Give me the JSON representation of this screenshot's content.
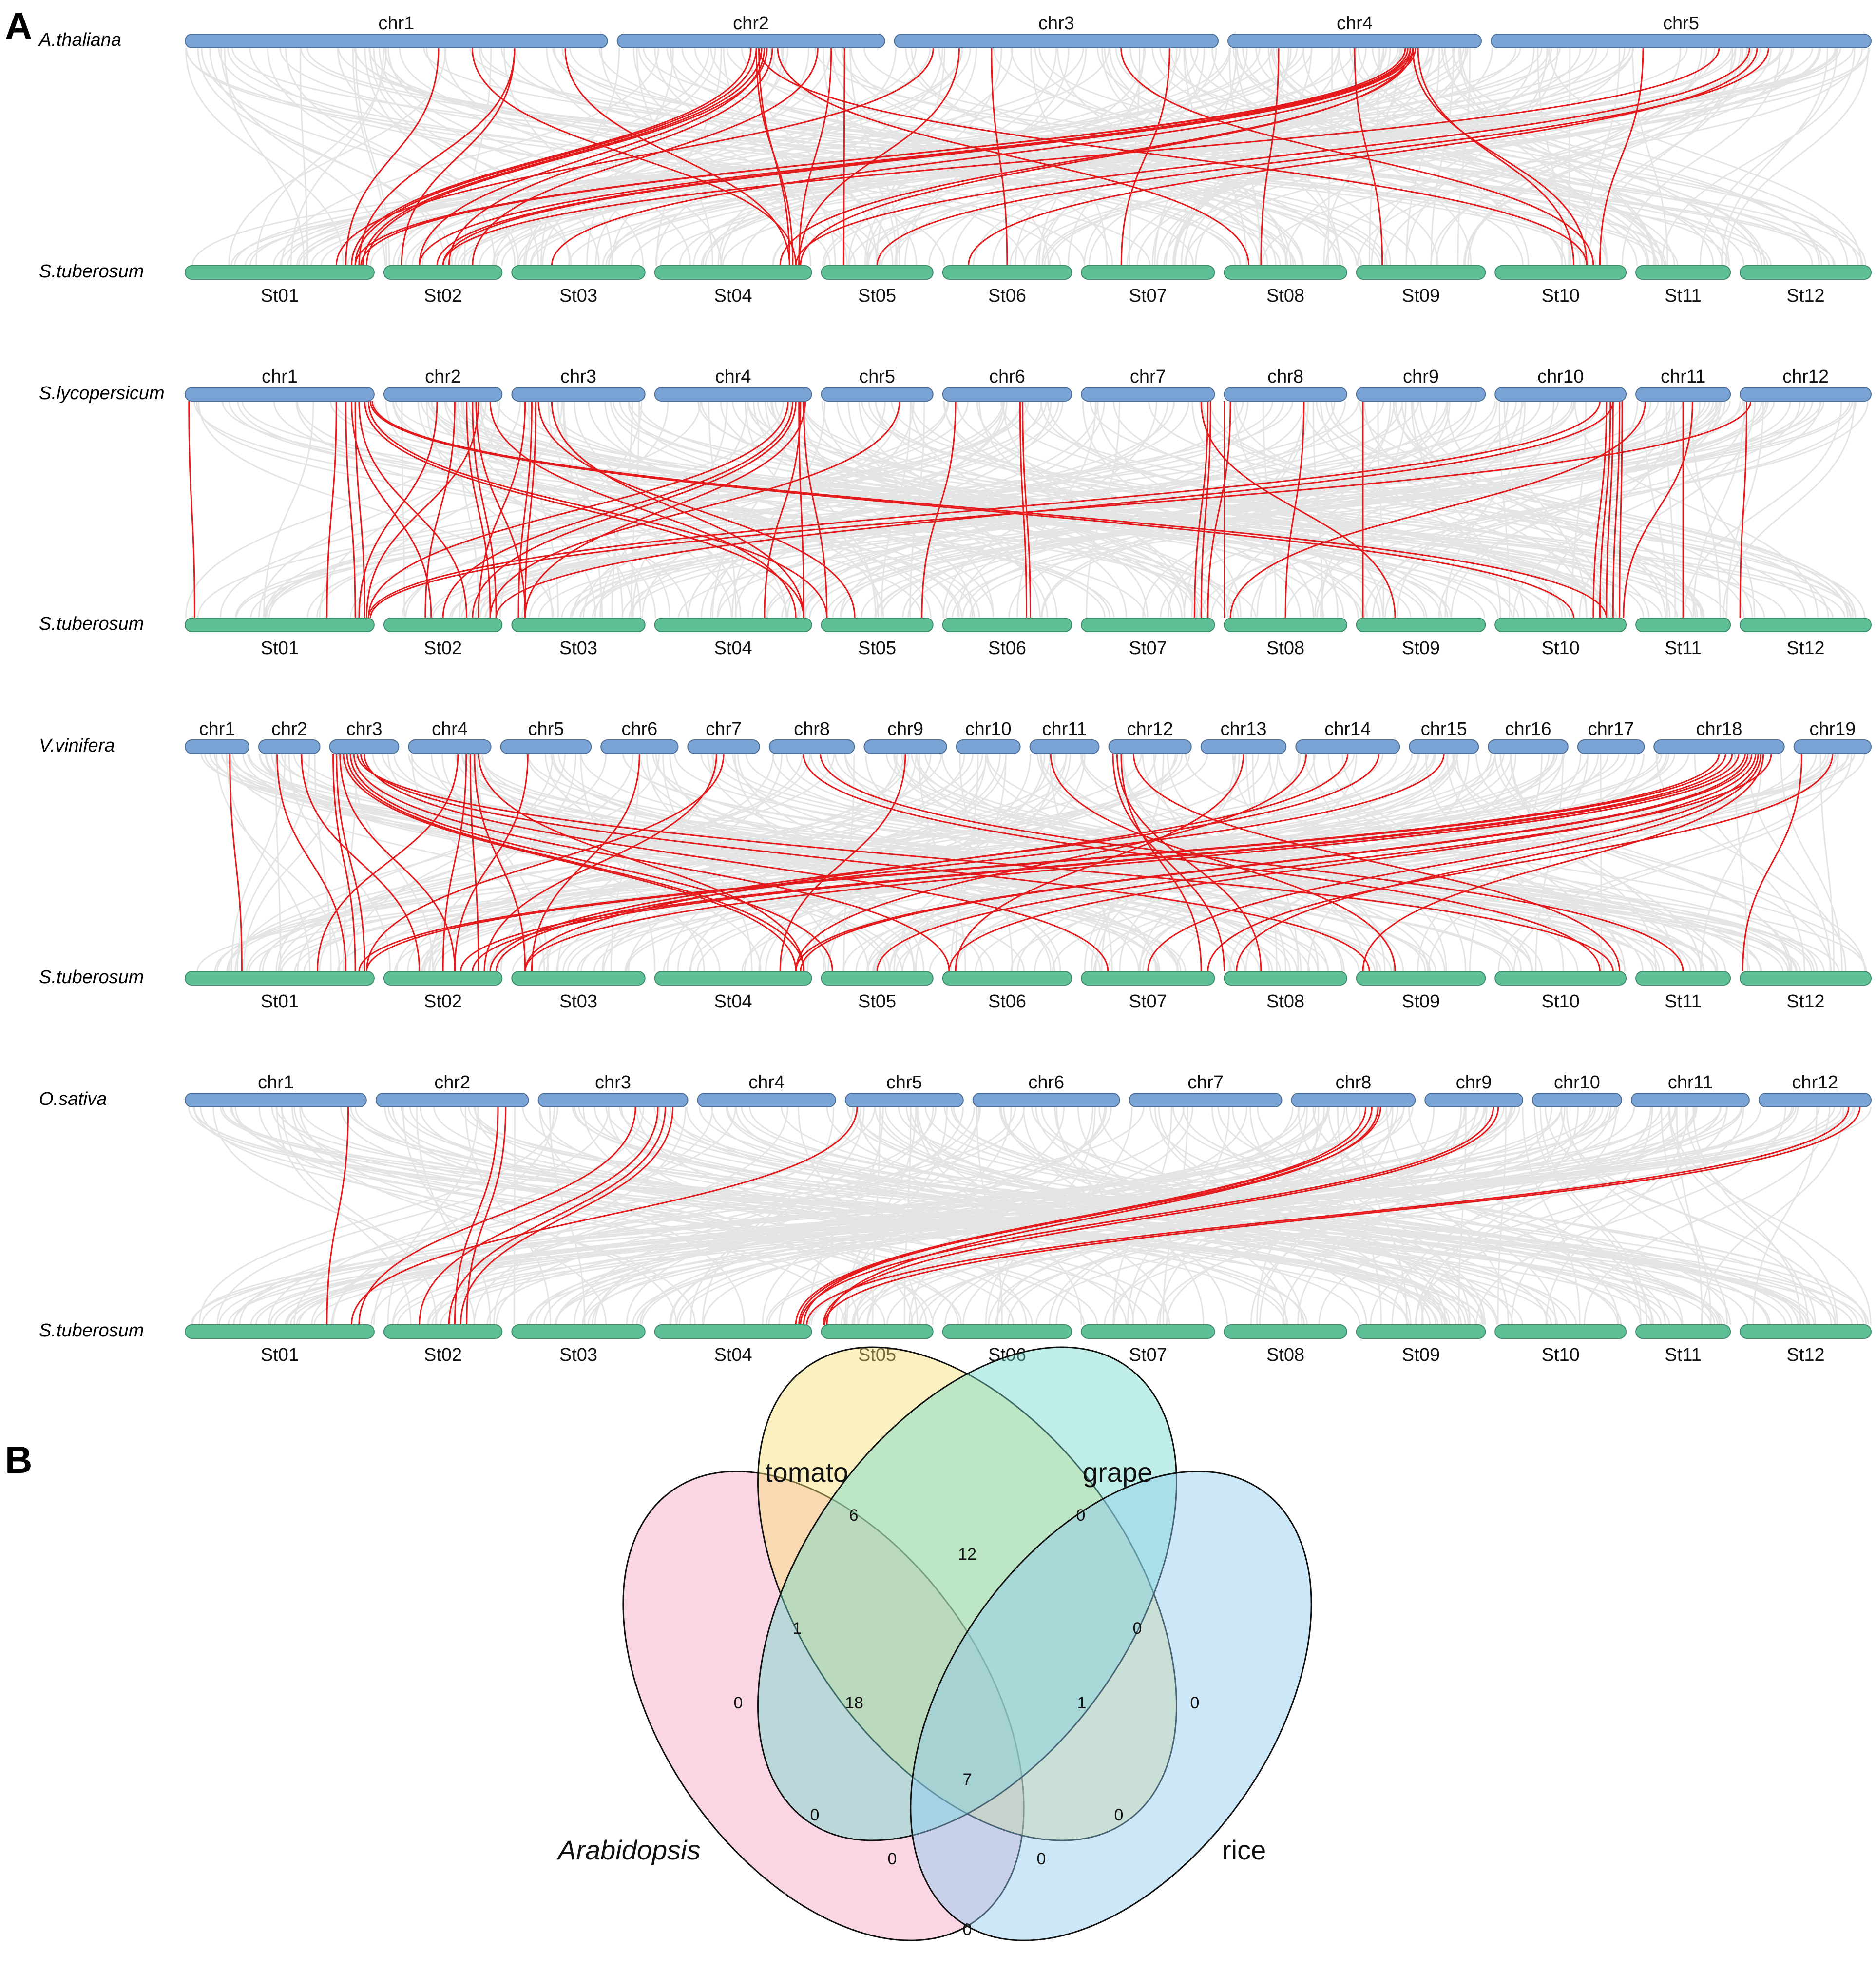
{
  "panel_a": {
    "letter": "A",
    "colors": {
      "top_bar": "#7aa3d6",
      "bottom_bar": "#5fbf97",
      "background_link": "#e4e4e4",
      "highlight_link": "#e41a1c"
    },
    "target": {
      "species": "S.tuberosum",
      "chromosomes": [
        "St01",
        "St02",
        "St03",
        "St04",
        "St05",
        "St06",
        "St07",
        "St08",
        "St09",
        "St10",
        "St11",
        "St12"
      ],
      "relative_lengths": [
        88,
        55,
        62,
        73,
        52,
        60,
        62,
        57,
        60,
        61,
        44,
        61
      ]
    },
    "rows": [
      {
        "species": "A.thaliana",
        "chromosomes": [
          "chr1",
          "chr2",
          "chr3",
          "chr4",
          "chr5"
        ],
        "relative_lengths": [
          30,
          19,
          23,
          18,
          27
        ],
        "highlight_links": [
          [
            0,
            0.78,
            0,
            0.92
          ],
          [
            0,
            0.78,
            1,
            0.15
          ],
          [
            0,
            0.9,
            3,
            0.86
          ],
          [
            0,
            0.6,
            0,
            0.85
          ],
          [
            0,
            0.68,
            3,
            0.9
          ],
          [
            1,
            0.5,
            0,
            0.88
          ],
          [
            1,
            0.52,
            0,
            0.9
          ],
          [
            1,
            0.54,
            0,
            0.94
          ],
          [
            1,
            0.56,
            0,
            0.96
          ],
          [
            1,
            0.55,
            1,
            0.3
          ],
          [
            1,
            0.58,
            1,
            0.55
          ],
          [
            1,
            0.52,
            3,
            0.88
          ],
          [
            1,
            0.53,
            3,
            0.86
          ],
          [
            1,
            0.75,
            1,
            0.75
          ],
          [
            1,
            0.8,
            3,
            0.92
          ],
          [
            1,
            0.85,
            4,
            0.2
          ],
          [
            1,
            0.6,
            7,
            0.2
          ],
          [
            1,
            0.53,
            9,
            0.7
          ],
          [
            2,
            0.12,
            0,
            0.8
          ],
          [
            2,
            0.2,
            3,
            0.92
          ],
          [
            2,
            0.3,
            5,
            0.5
          ],
          [
            2,
            0.7,
            9,
            0.75
          ],
          [
            2,
            0.85,
            6,
            0.3
          ],
          [
            3,
            0.72,
            0,
            0.9
          ],
          [
            3,
            0.7,
            0,
            0.93
          ],
          [
            3,
            0.71,
            1,
            0.3
          ],
          [
            3,
            0.72,
            1,
            0.45
          ],
          [
            3,
            0.73,
            1,
            0.5
          ],
          [
            3,
            0.72,
            3,
            0.93
          ],
          [
            3,
            0.73,
            3,
            0.8
          ],
          [
            3,
            0.75,
            9,
            0.6
          ],
          [
            3,
            0.73,
            9,
            0.7
          ],
          [
            3,
            0.2,
            7,
            0.3
          ],
          [
            3,
            0.5,
            8,
            0.2
          ],
          [
            3,
            0.74,
            2,
            0.3
          ],
          [
            4,
            0.73,
            4,
            0.5
          ],
          [
            4,
            0.6,
            1,
            0.5
          ],
          [
            4,
            0.68,
            3,
            0.9
          ],
          [
            4,
            0.7,
            5,
            0.2
          ],
          [
            4,
            0.4,
            9,
            0.8
          ]
        ]
      },
      {
        "species": "S.lycopersicum",
        "chromosomes": [
          "chr1",
          "chr2",
          "chr3",
          "chr4",
          "chr5",
          "chr6",
          "chr7",
          "chr8",
          "chr9",
          "chr10",
          "chr11",
          "chr12"
        ],
        "relative_lengths": [
          88,
          55,
          62,
          73,
          52,
          60,
          62,
          57,
          60,
          61,
          44,
          61
        ],
        "highlight_links": [
          [
            0,
            0.02,
            0,
            0.05
          ],
          [
            0,
            0.8,
            0,
            0.75
          ],
          [
            0,
            0.85,
            0,
            0.9
          ],
          [
            0,
            0.9,
            0,
            0.95
          ],
          [
            0,
            0.88,
            1,
            0.4
          ],
          [
            0,
            0.92,
            1,
            0.7
          ],
          [
            0,
            0.95,
            3,
            0.95
          ],
          [
            0,
            0.97,
            4,
            0.05
          ],
          [
            0,
            0.98,
            9,
            0.6
          ],
          [
            0,
            0.99,
            9,
            0.85
          ],
          [
            1,
            0.45,
            0,
            0.92
          ],
          [
            1,
            0.6,
            1,
            0.35
          ],
          [
            1,
            0.7,
            1,
            0.9
          ],
          [
            1,
            0.75,
            1,
            0.95
          ],
          [
            1,
            0.8,
            0,
            0.96
          ],
          [
            1,
            0.78,
            2,
            0.1
          ],
          [
            1,
            0.9,
            3,
            0.9
          ],
          [
            2,
            0.1,
            1,
            0.8
          ],
          [
            2,
            0.15,
            2,
            0.05
          ],
          [
            2,
            0.18,
            2,
            0.1
          ],
          [
            2,
            0.3,
            3,
            0.95
          ],
          [
            2,
            0.2,
            4,
            0.3
          ],
          [
            3,
            0.85,
            0,
            0.97
          ],
          [
            3,
            0.88,
            1,
            0.5
          ],
          [
            3,
            0.9,
            1,
            0.75
          ],
          [
            3,
            0.92,
            3,
            0.95
          ],
          [
            3,
            0.95,
            4,
            0.05
          ],
          [
            3,
            0.93,
            3,
            0.7
          ],
          [
            3,
            0.96,
            2,
            0.1
          ],
          [
            4,
            0.7,
            1,
            0.9
          ],
          [
            5,
            0.6,
            5,
            0.65
          ],
          [
            5,
            0.62,
            5,
            0.68
          ],
          [
            5,
            0.1,
            4,
            0.9
          ],
          [
            6,
            0.95,
            6,
            0.85
          ],
          [
            6,
            0.97,
            6,
            0.9
          ],
          [
            6,
            0.9,
            8,
            0.3
          ],
          [
            7,
            0.0,
            7,
            0.0
          ],
          [
            7,
            0.65,
            7,
            0.5
          ],
          [
            7,
            0.05,
            6,
            0.95
          ],
          [
            8,
            0.05,
            8,
            0.05
          ],
          [
            9,
            0.85,
            9,
            0.75
          ],
          [
            9,
            0.88,
            9,
            0.8
          ],
          [
            9,
            0.9,
            9,
            0.85
          ],
          [
            9,
            0.95,
            9,
            0.9
          ],
          [
            9,
            0.97,
            9,
            0.95
          ],
          [
            9,
            0.8,
            0,
            0.97
          ],
          [
            9,
            0.9,
            1,
            0.95
          ],
          [
            10,
            0.5,
            10,
            0.5
          ],
          [
            10,
            0.6,
            9,
            0.98
          ],
          [
            11,
            0.05,
            11,
            0.0
          ],
          [
            11,
            0.08,
            0,
            0.98
          ],
          [
            10,
            0.1,
            7,
            0.05
          ]
        ]
      },
      {
        "species": "V.vinifera",
        "chromosomes": [
          "chr1",
          "chr2",
          "chr3",
          "chr4",
          "chr5",
          "chr6",
          "chr7",
          "chr8",
          "chr9",
          "chr10",
          "chr11",
          "chr12",
          "chr13",
          "chr14",
          "chr15",
          "chr16",
          "chr17",
          "chr18",
          "chr19"
        ],
        "relative_lengths": [
          24,
          23,
          26,
          31,
          34,
          29,
          27,
          32,
          31,
          24,
          26,
          31,
          32,
          39,
          26,
          30,
          25,
          49,
          29
        ],
        "highlight_links": [
          [
            0,
            0.7,
            0,
            0.3
          ],
          [
            1,
            0.3,
            0,
            0.85
          ],
          [
            1,
            0.7,
            1,
            0.3
          ],
          [
            2,
            0.05,
            0,
            0.9
          ],
          [
            2,
            0.1,
            0,
            0.95
          ],
          [
            2,
            0.15,
            1,
            0.6
          ],
          [
            2,
            0.2,
            3,
            0.9
          ],
          [
            2,
            0.25,
            3,
            0.95
          ],
          [
            2,
            0.3,
            4,
            0.1
          ],
          [
            2,
            0.35,
            5,
            0.05
          ],
          [
            2,
            0.4,
            9,
            0.9
          ],
          [
            2,
            0.45,
            8,
            0.1
          ],
          [
            2,
            0.5,
            6,
            0.2
          ],
          [
            3,
            0.6,
            0,
            0.7
          ],
          [
            3,
            0.7,
            1,
            0.5
          ],
          [
            3,
            0.75,
            1,
            0.8
          ],
          [
            3,
            0.8,
            2,
            0.1
          ],
          [
            3,
            0.85,
            3,
            0.95
          ],
          [
            4,
            0.3,
            1,
            0.6
          ],
          [
            5,
            0.5,
            2,
            0.15
          ],
          [
            6,
            0.4,
            1,
            0.85
          ],
          [
            6,
            0.5,
            0,
            0.96
          ],
          [
            7,
            0.4,
            9,
            0.8
          ],
          [
            7,
            0.6,
            10,
            0.5
          ],
          [
            8,
            0.5,
            3,
            0.8
          ],
          [
            10,
            0.3,
            8,
            0.3
          ],
          [
            11,
            0.05,
            7,
            0.0
          ],
          [
            11,
            0.1,
            7,
            0.3
          ],
          [
            11,
            0.15,
            6,
            0.9
          ],
          [
            11,
            0.3,
            9,
            0.95
          ],
          [
            12,
            0.5,
            5,
            0.1
          ],
          [
            13,
            0.1,
            3,
            0.9
          ],
          [
            13,
            0.5,
            2,
            0.1
          ],
          [
            13,
            0.8,
            1,
            0.9
          ],
          [
            14,
            0.5,
            1,
            0.95
          ],
          [
            17,
            0.5,
            0,
            0.92
          ],
          [
            17,
            0.55,
            0,
            0.96
          ],
          [
            17,
            0.6,
            1,
            0.65
          ],
          [
            17,
            0.65,
            1,
            0.75
          ],
          [
            17,
            0.7,
            2,
            0.1
          ],
          [
            17,
            0.72,
            3,
            0.9
          ],
          [
            17,
            0.75,
            3,
            0.93
          ],
          [
            17,
            0.78,
            5,
            0.05
          ],
          [
            17,
            0.8,
            6,
            0.5
          ],
          [
            17,
            0.82,
            7,
            0.1
          ],
          [
            17,
            0.84,
            8,
            0.05
          ],
          [
            17,
            0.9,
            4,
            0.5
          ],
          [
            18,
            0.1,
            11,
            0.02
          ],
          [
            18,
            0.5,
            6,
            0.95
          ]
        ]
      },
      {
        "species": "O.sativa",
        "chromosomes": [
          "chr1",
          "chr2",
          "chr3",
          "chr4",
          "chr5",
          "chr6",
          "chr7",
          "chr8",
          "chr9",
          "chr10",
          "chr11",
          "chr12"
        ],
        "relative_lengths": [
          63,
          53,
          52,
          48,
          41,
          51,
          53,
          43,
          34,
          31,
          41,
          39
        ],
        "highlight_links": [
          [
            0,
            0.9,
            0,
            0.75
          ],
          [
            1,
            0.8,
            1,
            0.6
          ],
          [
            1,
            0.85,
            1,
            0.7
          ],
          [
            2,
            0.65,
            0,
            0.92
          ],
          [
            2,
            0.8,
            1,
            0.3
          ],
          [
            2,
            0.85,
            1,
            0.55
          ],
          [
            2,
            0.9,
            1,
            0.65
          ],
          [
            4,
            0.1,
            0,
            0.88
          ],
          [
            7,
            0.6,
            3,
            0.95
          ],
          [
            7,
            0.65,
            3,
            0.9
          ],
          [
            7,
            0.7,
            4,
            0.05
          ],
          [
            7,
            0.72,
            3,
            0.92
          ],
          [
            8,
            0.7,
            3,
            0.93
          ],
          [
            8,
            0.75,
            4,
            0.02
          ],
          [
            11,
            0.8,
            3,
            0.97
          ],
          [
            11,
            0.9,
            4,
            0.03
          ]
        ]
      }
    ]
  },
  "panel_b": {
    "letter": "B",
    "sets": [
      {
        "name": "tomato",
        "color": "#f7dd70"
      },
      {
        "name": "grape",
        "color": "#72dacc"
      },
      {
        "name": "Arabidopsis",
        "color": "#f4a5c5"
      },
      {
        "name": "rice",
        "color": "#8ec9ef"
      }
    ],
    "regions": {
      "tomato_only": "6",
      "grape_only": "0",
      "arabidopsis_only": "0",
      "rice_only": "0",
      "tomato_grape": "12",
      "arabidopsis_tomato": "1",
      "grape_rice": "0",
      "arabidopsis_tomato_grape": "18",
      "tomato_grape_rice": "1",
      "all_four": "7",
      "arabidopsis_rice_only": "0",
      "arabidopsis_grape": "0",
      "tomato_rice": "0",
      "arabidopsis_grape_rice": "0",
      "arabidopsis_tomato_rice": "0"
    }
  }
}
